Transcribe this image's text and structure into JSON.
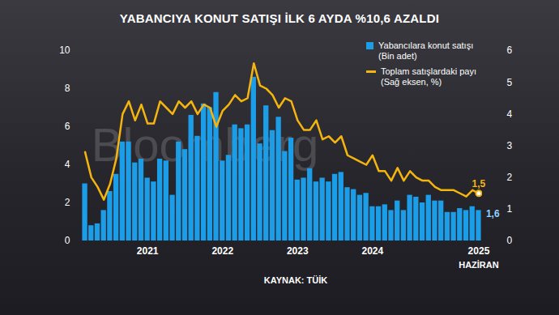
{
  "chart_data": {
    "type": "bar",
    "title": "YABANCIYA KONUT SATIŞI İLK 6 AYDA %10,6 AZALDI",
    "categories": [
      null,
      null,
      null,
      null,
      null,
      null,
      null,
      null,
      null,
      null,
      "2021",
      null,
      null,
      null,
      null,
      null,
      null,
      null,
      null,
      null,
      null,
      null,
      "2022",
      null,
      null,
      null,
      null,
      null,
      null,
      null,
      null,
      null,
      null,
      null,
      "2023",
      null,
      null,
      null,
      null,
      null,
      null,
      null,
      null,
      null,
      null,
      null,
      "2024",
      null,
      null,
      null,
      null,
      null,
      null,
      null,
      null,
      null,
      null,
      null,
      null,
      null,
      null,
      null,
      null,
      "2025"
    ],
    "series": [
      {
        "name": "Yabancılara konut satışı (Bin adet)",
        "type": "bar",
        "color": "#1b9de8",
        "values": [
          3.0,
          0.8,
          0.9,
          1.6,
          2.6,
          3.5,
          5.2,
          5.2,
          4.1,
          4.3,
          3.3,
          3.1,
          4.3,
          4.2,
          2.4,
          5.2,
          4.8,
          6.6,
          5.5,
          7.2,
          7.0,
          7.8,
          4.2,
          4.5,
          6.1,
          5.9,
          6.1,
          8.6,
          5.1,
          7.1,
          5.8,
          6.5,
          4.7,
          5.4,
          3.2,
          3.3,
          3.8,
          3.1,
          3.3,
          3.1,
          3.5,
          3.6,
          2.8,
          2.7,
          2.4,
          2.5,
          1.8,
          1.8,
          1.9,
          1.6,
          2.1,
          1.6,
          2.4,
          2.3,
          2.0,
          2.4,
          2.1,
          2.1,
          1.5,
          1.5,
          1.7,
          1.6,
          1.8,
          1.6
        ],
        "value_labels": [
          null,
          null,
          null,
          null,
          null,
          null,
          null,
          null,
          null,
          null,
          null,
          null,
          null,
          null,
          null,
          null,
          null,
          null,
          null,
          null,
          null,
          null,
          null,
          null,
          null,
          null,
          null,
          null,
          null,
          null,
          null,
          null,
          null,
          null,
          null,
          null,
          null,
          null,
          null,
          null,
          null,
          null,
          null,
          null,
          null,
          null,
          null,
          null,
          null,
          null,
          null,
          null,
          null,
          null,
          null,
          null,
          null,
          null,
          null,
          null,
          null,
          null,
          null,
          "1,6"
        ]
      },
      {
        "name": "Toplam satışlardaki payı (Sağ eksen, %)",
        "type": "line",
        "color": "#f5b50f",
        "axis": "y2",
        "values": [
          2.8,
          2.0,
          1.7,
          1.3,
          1.8,
          2.6,
          4.0,
          4.4,
          3.8,
          4.3,
          3.7,
          3.7,
          4.4,
          4.2,
          4.0,
          4.4,
          4.2,
          4.4,
          4.0,
          4.3,
          4.2,
          3.6,
          4.1,
          4.3,
          4.6,
          4.4,
          4.5,
          5.6,
          4.9,
          4.8,
          4.6,
          4.2,
          4.5,
          4.4,
          3.8,
          3.5,
          3.5,
          3.8,
          3.2,
          3.3,
          3.1,
          3.3,
          2.7,
          2.6,
          2.5,
          2.4,
          2.7,
          2.2,
          2.2,
          1.9,
          2.3,
          1.9,
          2.2,
          2.0,
          1.9,
          1.9,
          1.7,
          1.6,
          1.6,
          1.6,
          1.5,
          1.4,
          1.6,
          1.5
        ],
        "value_labels": [
          null,
          null,
          null,
          null,
          null,
          null,
          null,
          null,
          null,
          null,
          null,
          null,
          null,
          null,
          null,
          null,
          null,
          null,
          null,
          null,
          null,
          null,
          null,
          null,
          null,
          null,
          null,
          null,
          null,
          null,
          null,
          null,
          null,
          null,
          null,
          null,
          null,
          null,
          null,
          null,
          null,
          null,
          null,
          null,
          null,
          null,
          null,
          null,
          null,
          null,
          null,
          null,
          null,
          null,
          null,
          null,
          null,
          null,
          null,
          null,
          null,
          null,
          null,
          "1,5"
        ]
      }
    ],
    "ylim": [
      0,
      10
    ],
    "yticks": [
      0,
      2,
      4,
      6,
      8,
      10
    ],
    "y2lim": [
      0,
      6
    ],
    "y2ticks": [
      0,
      1,
      2,
      3,
      4,
      5,
      6
    ],
    "annotation": "HAZİRAN",
    "source": "KAYNAK: TÜİK",
    "watermark": "Bloomberg",
    "legend": "top-right",
    "data_labels": true,
    "grid": false
  }
}
